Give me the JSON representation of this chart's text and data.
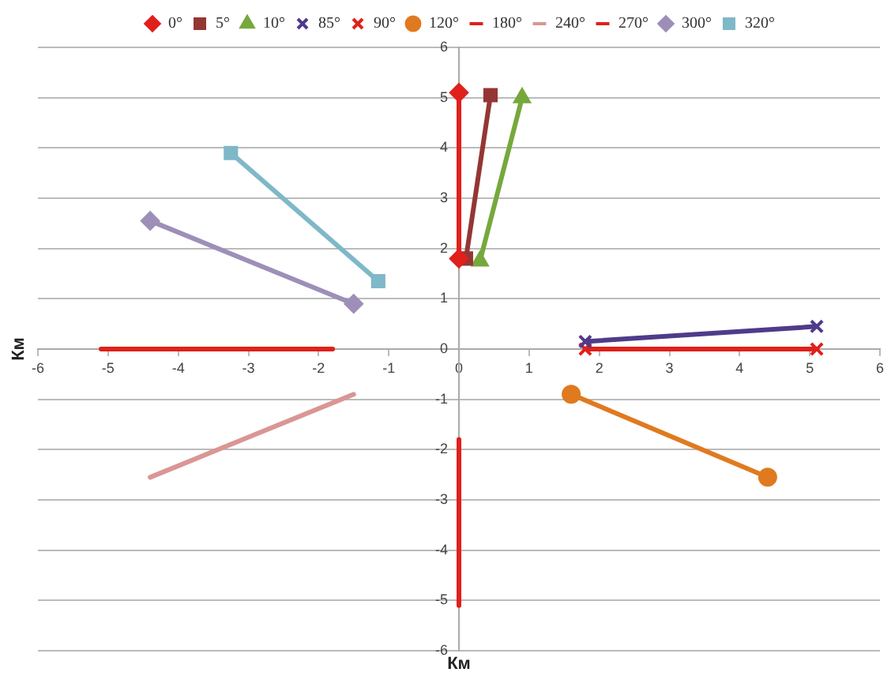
{
  "chart_data": {
    "type": "line",
    "xlabel": "Км",
    "ylabel": "Км",
    "xlim": [
      -6,
      6
    ],
    "ylim": [
      -6,
      6
    ],
    "xticks": [
      -6,
      -5,
      -4,
      -3,
      -2,
      -1,
      0,
      1,
      2,
      3,
      4,
      5,
      6
    ],
    "yticks": [
      -6,
      -5,
      -4,
      -3,
      -2,
      -1,
      0,
      1,
      2,
      3,
      4,
      5,
      6
    ],
    "grid": "y",
    "legend": "top",
    "series": [
      {
        "name": "0°",
        "color": "#e0201b",
        "marker": "diamond",
        "x": [
          0,
          0
        ],
        "values": [
          5.1,
          1.8
        ]
      },
      {
        "name": "5°",
        "color": "#943634",
        "marker": "square",
        "x": [
          0.1,
          0.45
        ],
        "values": [
          1.8,
          5.05
        ]
      },
      {
        "name": "10°",
        "color": "#77a83c",
        "marker": "triangle",
        "x": [
          0.3,
          0.9
        ],
        "values": [
          1.75,
          5.0
        ]
      },
      {
        "name": "85°",
        "color": "#4f3b8a",
        "marker": "cross",
        "x": [
          1.8,
          5.1
        ],
        "values": [
          0.15,
          0.45
        ]
      },
      {
        "name": "90°",
        "color": "#e0201b",
        "marker": "cross",
        "x": [
          1.8,
          5.1
        ],
        "values": [
          0,
          0
        ]
      },
      {
        "name": "120°",
        "color": "#e07a1f",
        "marker": "circle",
        "x": [
          1.6,
          4.4
        ],
        "values": [
          -0.9,
          -2.55
        ]
      },
      {
        "name": "180°",
        "color": "#e0201b",
        "marker": "none",
        "x": [
          0,
          0
        ],
        "values": [
          -1.8,
          -5.1
        ]
      },
      {
        "name": "240°",
        "color": "#d99694",
        "marker": "none",
        "x": [
          -1.5,
          -4.4
        ],
        "values": [
          -0.9,
          -2.55
        ]
      },
      {
        "name": "270°",
        "color": "#e0201b",
        "marker": "none",
        "x": [
          -1.8,
          -5.1
        ],
        "values": [
          0,
          0
        ]
      },
      {
        "name": "300°",
        "color": "#9d8fb8",
        "marker": "diamond",
        "x": [
          -1.5,
          -4.4
        ],
        "values": [
          0.9,
          2.55
        ]
      },
      {
        "name": "320°",
        "color": "#7fb8c8",
        "marker": "square",
        "x": [
          -1.15,
          -3.25
        ],
        "values": [
          1.35,
          3.9
        ]
      }
    ]
  }
}
